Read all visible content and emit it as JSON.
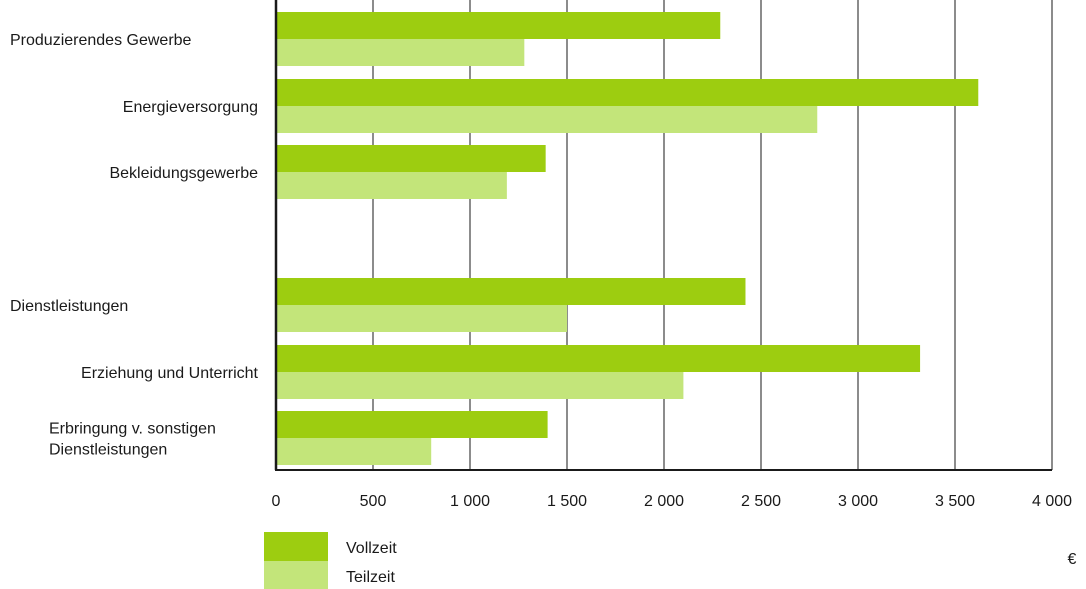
{
  "chart_data": {
    "type": "bar",
    "orientation": "horizontal",
    "groups": [
      {
        "categories": [
          {
            "label_lines": [
              "Produzierendes Gewerbe"
            ],
            "align": "left"
          },
          {
            "label_lines": [
              "Energieversorgung"
            ],
            "align": "right"
          },
          {
            "label_lines": [
              "Bekleidungsgewerbe"
            ],
            "align": "right"
          }
        ]
      },
      {
        "categories": [
          {
            "label_lines": [
              "Dienstleistungen"
            ],
            "align": "left"
          },
          {
            "label_lines": [
              "Erziehung und Unterricht"
            ],
            "align": "right"
          },
          {
            "label_lines": [
              "Erbringung v. sonstigen",
              "Dienstleistungen"
            ],
            "align": "right"
          }
        ]
      }
    ],
    "series": [
      {
        "name": "Vollzeit",
        "color": "#9dcd10",
        "values": [
          2290,
          3620,
          1390,
          2420,
          3320,
          1400
        ]
      },
      {
        "name": "Teilzeit",
        "color": "#c3e57a",
        "values": [
          1280,
          2790,
          1190,
          1500,
          2100,
          800
        ]
      }
    ],
    "xlim": [
      0,
      4000
    ],
    "xticks": [
      0,
      500,
      1000,
      1500,
      2000,
      2500,
      3000,
      3500,
      4000
    ],
    "xtick_labels": [
      "0",
      "500",
      "1 000",
      "1 500",
      "2 000",
      "2 500",
      "3 000",
      "3 500",
      "4 000"
    ],
    "xlabel": "€",
    "grid": "vertical",
    "legend_position": "bottom-left"
  }
}
